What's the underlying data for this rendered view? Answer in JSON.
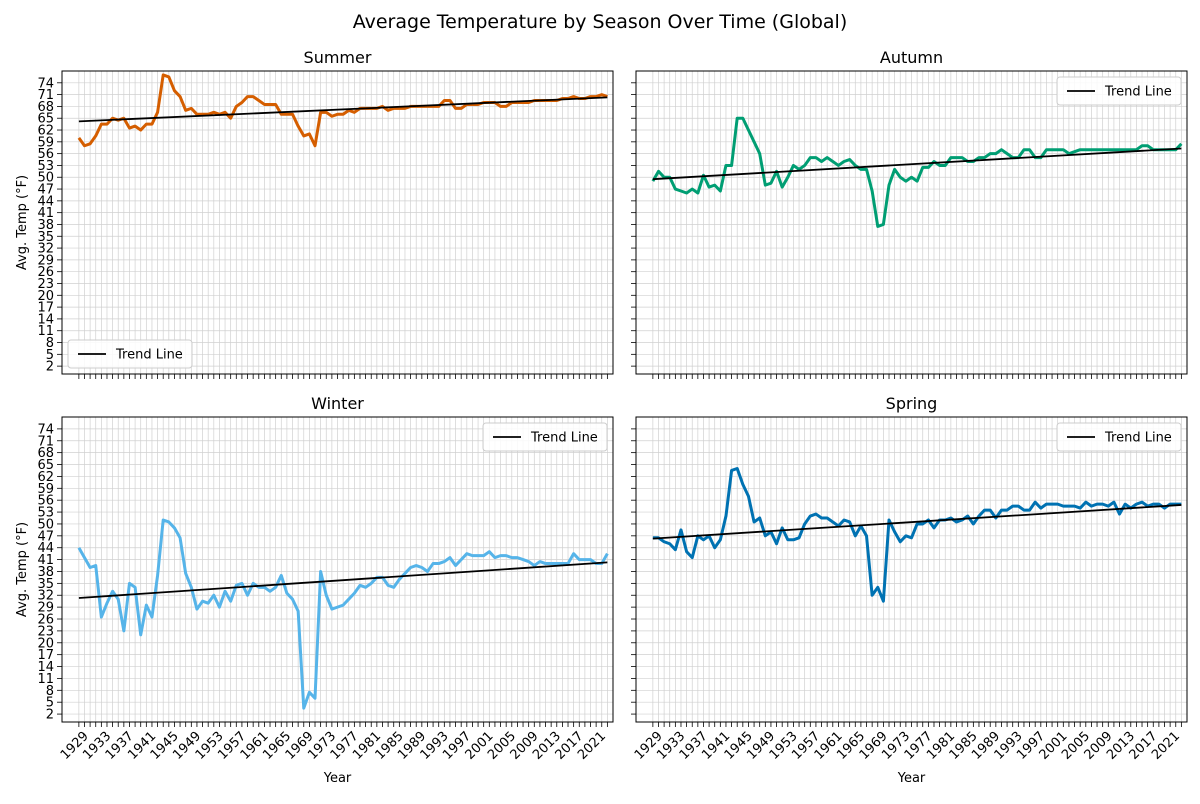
{
  "title": "Average Temperature by Season Over Time (Global)",
  "chart_data": [
    {
      "type": "line",
      "title": "Summer",
      "xlabel": "",
      "ylabel": "Avg. Temp (°F)",
      "xlim": [
        1926,
        2024
      ],
      "ylim": [
        0,
        77
      ],
      "yticks": [
        2,
        5,
        8,
        11,
        14,
        17,
        20,
        23,
        26,
        29,
        32,
        35,
        38,
        41,
        44,
        47,
        50,
        53,
        56,
        59,
        62,
        65,
        68,
        71,
        74
      ],
      "xticks": [],
      "grid": true,
      "legend": {
        "position": "lower-left",
        "entries": [
          "Trend Line"
        ]
      },
      "series": [
        {
          "color": "#d55e00",
          "x": [
            1929,
            1930,
            1931,
            1932,
            1933,
            1934,
            1935,
            1936,
            1937,
            1938,
            1939,
            1940,
            1941,
            1942,
            1943,
            1944,
            1945,
            1946,
            1947,
            1948,
            1949,
            1950,
            1951,
            1952,
            1953,
            1954,
            1955,
            1956,
            1957,
            1958,
            1959,
            1960,
            1961,
            1962,
            1963,
            1964,
            1965,
            1966,
            1967,
            1968,
            1969,
            1970,
            1971,
            1972,
            1973,
            1974,
            1975,
            1976,
            1977,
            1978,
            1979,
            1980,
            1981,
            1982,
            1983,
            1984,
            1985,
            1986,
            1987,
            1988,
            1989,
            1990,
            1991,
            1992,
            1993,
            1994,
            1995,
            1996,
            1997,
            1998,
            1999,
            2000,
            2001,
            2002,
            2003,
            2004,
            2005,
            2006,
            2007,
            2008,
            2009,
            2010,
            2011,
            2012,
            2013,
            2014,
            2015,
            2016,
            2017,
            2018,
            2019,
            2020,
            2021,
            2022,
            2023
          ],
          "y": [
            60,
            58,
            58.5,
            60.5,
            63.5,
            63.5,
            65,
            64.5,
            65,
            62.5,
            63,
            62,
            63.5,
            63.5,
            66.5,
            76,
            75.5,
            72,
            70.5,
            67,
            67.5,
            66,
            66,
            66,
            66.5,
            66,
            66.5,
            65,
            68,
            69,
            70.5,
            70.5,
            69.5,
            68.5,
            68.5,
            68.5,
            66,
            66,
            66,
            63,
            60.5,
            61,
            58,
            66.5,
            66.5,
            65.5,
            66,
            66,
            67,
            66.5,
            67.5,
            67.5,
            67.5,
            67.5,
            68,
            67,
            67.5,
            67.5,
            67.5,
            68,
            68,
            68,
            68,
            68,
            68,
            69.5,
            69.5,
            67.5,
            67.5,
            68.5,
            68.5,
            68.5,
            69,
            69,
            69,
            68,
            68,
            69,
            69,
            69,
            69,
            69.5,
            69.5,
            69.5,
            69.5,
            69.5,
            70,
            70,
            70.5,
            70,
            70,
            70.5,
            70.5,
            71,
            70.5
          ]
        },
        {
          "name": "Trend Line",
          "color": "#000000",
          "x": [
            1929,
            2023
          ],
          "y": [
            64.2,
            70.3
          ]
        }
      ]
    },
    {
      "type": "line",
      "title": "Autumn",
      "xlabel": "",
      "ylabel": "",
      "xlim": [
        1926,
        2024
      ],
      "ylim": [
        0,
        77
      ],
      "yticks": [],
      "xticks": [],
      "grid": true,
      "legend": {
        "position": "top-right",
        "entries": [
          "Trend Line"
        ]
      },
      "series": [
        {
          "color": "#009e73",
          "x": [
            1929,
            1930,
            1931,
            1932,
            1933,
            1934,
            1935,
            1936,
            1937,
            1938,
            1939,
            1940,
            1941,
            1942,
            1943,
            1944,
            1945,
            1946,
            1947,
            1948,
            1949,
            1950,
            1951,
            1952,
            1953,
            1954,
            1955,
            1956,
            1957,
            1958,
            1959,
            1960,
            1961,
            1962,
            1963,
            1964,
            1965,
            1966,
            1967,
            1968,
            1969,
            1970,
            1971,
            1972,
            1973,
            1974,
            1975,
            1976,
            1977,
            1978,
            1979,
            1980,
            1981,
            1982,
            1983,
            1984,
            1985,
            1986,
            1987,
            1988,
            1989,
            1990,
            1991,
            1992,
            1993,
            1994,
            1995,
            1996,
            1997,
            1998,
            1999,
            2000,
            2001,
            2002,
            2003,
            2004,
            2005,
            2006,
            2007,
            2008,
            2009,
            2010,
            2011,
            2012,
            2013,
            2014,
            2015,
            2016,
            2017,
            2018,
            2019,
            2020,
            2021,
            2022,
            2023
          ],
          "y": [
            49,
            51.5,
            50,
            50,
            47,
            46.5,
            46,
            47,
            46,
            50.5,
            47.5,
            48,
            46.5,
            53,
            53,
            65,
            65,
            62,
            59,
            56,
            48,
            48.5,
            51.5,
            47.5,
            50,
            53,
            52,
            53,
            55,
            55,
            54,
            55,
            54,
            53,
            54,
            54.5,
            53,
            52,
            52,
            46.5,
            37.5,
            38,
            48,
            52,
            50,
            49,
            50,
            49,
            52.5,
            52.5,
            54,
            53,
            53,
            55,
            55,
            55,
            54,
            54,
            55,
            55,
            56,
            56,
            57,
            56,
            55,
            55,
            57,
            57,
            55,
            55,
            57,
            57,
            57,
            57,
            56,
            56.5,
            57,
            57,
            57,
            57,
            57,
            57,
            57,
            57,
            57,
            57,
            57,
            58,
            58,
            57,
            57,
            57,
            57,
            57,
            58.5
          ]
        },
        {
          "name": "Trend Line",
          "color": "#000000",
          "x": [
            1929,
            2023
          ],
          "y": [
            49.5,
            57.3
          ]
        }
      ]
    },
    {
      "type": "line",
      "title": "Winter",
      "xlabel": "Year",
      "ylabel": "Avg. Temp (°F)",
      "xlim": [
        1926,
        2024
      ],
      "ylim": [
        0,
        77
      ],
      "yticks": [
        2,
        5,
        8,
        11,
        14,
        17,
        20,
        23,
        26,
        29,
        32,
        35,
        38,
        41,
        44,
        47,
        50,
        53,
        56,
        59,
        62,
        65,
        68,
        71,
        74
      ],
      "xticks": [
        1929,
        1933,
        1937,
        1941,
        1945,
        1949,
        1953,
        1957,
        1961,
        1965,
        1969,
        1973,
        1977,
        1981,
        1985,
        1989,
        1993,
        1997,
        2001,
        2005,
        2009,
        2013,
        2017,
        2021
      ],
      "grid": true,
      "legend": {
        "position": "top-right",
        "entries": [
          "Trend Line"
        ]
      },
      "series": [
        {
          "color": "#56b4e9",
          "x": [
            1929,
            1930,
            1931,
            1932,
            1933,
            1934,
            1935,
            1936,
            1937,
            1938,
            1939,
            1940,
            1941,
            1942,
            1943,
            1944,
            1945,
            1946,
            1947,
            1948,
            1949,
            1950,
            1951,
            1952,
            1953,
            1954,
            1955,
            1956,
            1957,
            1958,
            1959,
            1960,
            1961,
            1962,
            1963,
            1964,
            1965,
            1966,
            1967,
            1968,
            1969,
            1970,
            1971,
            1972,
            1973,
            1974,
            1975,
            1976,
            1977,
            1978,
            1979,
            1980,
            1981,
            1982,
            1983,
            1984,
            1985,
            1986,
            1987,
            1988,
            1989,
            1990,
            1991,
            1992,
            1993,
            1994,
            1995,
            1996,
            1997,
            1998,
            1999,
            2000,
            2001,
            2002,
            2003,
            2004,
            2005,
            2006,
            2007,
            2008,
            2009,
            2010,
            2011,
            2012,
            2013,
            2014,
            2015,
            2016,
            2017,
            2018,
            2019,
            2020,
            2021,
            2022,
            2023
          ],
          "y": [
            44,
            41.5,
            39,
            39.5,
            26.5,
            30,
            33,
            31,
            23,
            35,
            34,
            22,
            29.5,
            26.5,
            37,
            51,
            50.5,
            49,
            46.5,
            37.5,
            34,
            28.5,
            30.5,
            30,
            32,
            29,
            33,
            30.5,
            34.5,
            35,
            32,
            35,
            34,
            34,
            33,
            34,
            37,
            32.5,
            31,
            28,
            3.5,
            7.5,
            6,
            38,
            32,
            28.5,
            29,
            29.5,
            31,
            32.5,
            34.5,
            34,
            35,
            36.5,
            36.5,
            34.5,
            34,
            36,
            37.5,
            39,
            39.5,
            39,
            38,
            40,
            40,
            40.5,
            41.5,
            39.5,
            41,
            42.5,
            42,
            42,
            42,
            43,
            41.5,
            42,
            42,
            41.5,
            41.5,
            41,
            40.5,
            39.5,
            40.5,
            40,
            40,
            40,
            40,
            40,
            42.5,
            41,
            41,
            41,
            40,
            40,
            42.5
          ]
        },
        {
          "name": "Trend Line",
          "color": "#000000",
          "x": [
            1929,
            2023
          ],
          "y": [
            31.3,
            40.3
          ]
        }
      ]
    },
    {
      "type": "line",
      "title": "Spring",
      "xlabel": "Year",
      "ylabel": "",
      "xlim": [
        1926,
        2024
      ],
      "ylim": [
        0,
        77
      ],
      "yticks": [],
      "xticks": [
        1929,
        1933,
        1937,
        1941,
        1945,
        1949,
        1953,
        1957,
        1961,
        1965,
        1969,
        1973,
        1977,
        1981,
        1985,
        1989,
        1993,
        1997,
        2001,
        2005,
        2009,
        2013,
        2017,
        2021
      ],
      "grid": true,
      "legend": {
        "position": "top-right",
        "entries": [
          "Trend Line"
        ]
      },
      "series": [
        {
          "color": "#0072b2",
          "x": [
            1929,
            1930,
            1931,
            1932,
            1933,
            1934,
            1935,
            1936,
            1937,
            1938,
            1939,
            1940,
            1941,
            1942,
            1943,
            1944,
            1945,
            1946,
            1947,
            1948,
            1949,
            1950,
            1951,
            1952,
            1953,
            1954,
            1955,
            1956,
            1957,
            1958,
            1959,
            1960,
            1961,
            1962,
            1963,
            1964,
            1965,
            1966,
            1967,
            1968,
            1969,
            1970,
            1971,
            1972,
            1973,
            1974,
            1975,
            1976,
            1977,
            1978,
            1979,
            1980,
            1981,
            1982,
            1983,
            1984,
            1985,
            1986,
            1987,
            1988,
            1989,
            1990,
            1991,
            1992,
            1993,
            1994,
            1995,
            1996,
            1997,
            1998,
            1999,
            2000,
            2001,
            2002,
            2003,
            2004,
            2005,
            2006,
            2007,
            2008,
            2009,
            2010,
            2011,
            2012,
            2013,
            2014,
            2015,
            2016,
            2017,
            2018,
            2019,
            2020,
            2021,
            2022,
            2023
          ],
          "y": [
            46.5,
            46.5,
            45.5,
            45,
            43.5,
            48.5,
            43,
            41.5,
            47,
            46,
            47,
            44,
            46,
            52,
            63.5,
            64,
            60,
            57,
            50.5,
            51.5,
            47,
            48,
            45,
            49,
            46,
            46,
            46.5,
            50,
            52,
            52.5,
            51.5,
            51.5,
            50.5,
            49.5,
            51,
            50.5,
            47,
            49.5,
            47,
            32,
            34,
            30.5,
            51,
            48,
            45.5,
            47,
            46.5,
            50,
            50,
            51,
            49,
            51,
            51,
            51.5,
            50.5,
            51,
            52,
            50,
            52,
            53.5,
            53.5,
            51.5,
            53.5,
            53.5,
            54.5,
            54.5,
            53.5,
            53.5,
            55.5,
            54,
            55,
            55,
            55,
            54.5,
            54.5,
            54.5,
            54,
            55.5,
            54.5,
            55,
            55,
            54.5,
            55.5,
            52.5,
            55,
            54,
            55,
            55.5,
            54.5,
            55,
            55,
            54,
            55,
            55,
            55
          ]
        },
        {
          "name": "Trend Line",
          "color": "#000000",
          "x": [
            1929,
            2023
          ],
          "y": [
            46.3,
            54.8
          ]
        }
      ]
    }
  ]
}
